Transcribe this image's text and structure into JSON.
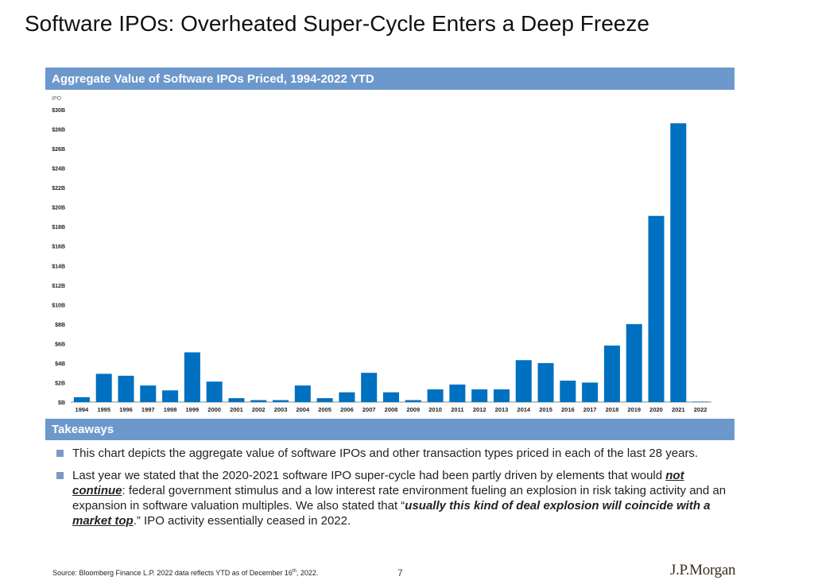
{
  "page": {
    "title": "Software IPOs: Overheated Super-Cycle Enters a Deep Freeze"
  },
  "chart_header": "Aggregate Value of Software IPOs Priced, 1994-2022 YTD",
  "chart_data": {
    "type": "bar",
    "title": "Aggregate Value of Software IPOs Priced, 1994-2022 YTD",
    "ylabel": "IPO",
    "xlabel": "",
    "ylim": [
      0,
      30
    ],
    "yticks": [
      0,
      2,
      4,
      6,
      8,
      10,
      12,
      14,
      16,
      18,
      20,
      22,
      24,
      26,
      28,
      30
    ],
    "ytick_labels": [
      "$B",
      "$2B",
      "$4B",
      "$6B",
      "$8B",
      "$10B",
      "$12B",
      "$14B",
      "$16B",
      "$18B",
      "$20B",
      "$22B",
      "$24B",
      "$26B",
      "$28B",
      "$30B"
    ],
    "categories": [
      "1994",
      "1995",
      "1996",
      "1997",
      "1998",
      "1999",
      "2000",
      "2001",
      "2002",
      "2003",
      "2004",
      "2005",
      "2006",
      "2007",
      "2008",
      "2009",
      "2010",
      "2011",
      "2012",
      "2013",
      "2014",
      "2015",
      "2016",
      "2017",
      "2018",
      "2019",
      "2020",
      "2021",
      "2022"
    ],
    "values": [
      0.5,
      2.9,
      2.7,
      1.7,
      1.2,
      5.1,
      2.1,
      0.4,
      0.2,
      0.2,
      1.7,
      0.4,
      1.0,
      3.0,
      1.0,
      0.2,
      1.3,
      1.8,
      1.3,
      1.3,
      4.3,
      4.0,
      2.2,
      2.0,
      5.8,
      8.0,
      19.1,
      28.6,
      0.05
    ],
    "grid": false,
    "bar_color": "#0070c0"
  },
  "takeaways": {
    "header": "Takeaways",
    "item1": "This chart depicts the aggregate value of software IPOs and other transaction types priced in each of the last 28 years.",
    "item2_a": "Last year we stated that the 2020-2021 software IPO super-cycle had been partly driven by elements that would ",
    "item2_b": "not continue",
    "item2_c": ": federal government stimulus and a low interest rate environment fueling an explosion in risk taking activity and an expansion in software valuation multiples. We also stated that “",
    "item2_d": "usually this kind of deal explosion will coincide with a ",
    "item2_e": "market top",
    "item2_f": ".” IPO activity essentially ceased in 2022."
  },
  "footer": {
    "source_a": "Source: Bloomberg Finance L.P. 2022 data reflects YTD as of December 16",
    "source_sup": "th",
    "source_b": ", 2022.",
    "page_number": "7",
    "brand": "J.P.Morgan"
  }
}
